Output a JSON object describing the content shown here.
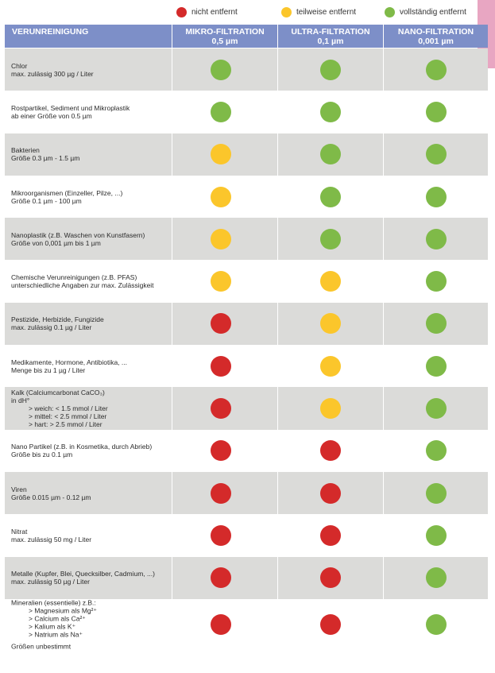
{
  "legend": [
    {
      "label": "nicht entfernt",
      "color": "#d42a2a"
    },
    {
      "label": "teilweise entfernt",
      "color": "#fbc62b"
    },
    {
      "label": "vollständig entfernt",
      "color": "#7fba48"
    }
  ],
  "header": {
    "col0": "VERUNREINIGUNG",
    "col1_title": "MIKRO-FILTRATION",
    "col1_size": "0,5 µm",
    "col2_title": "ULTRA-FILTRATION",
    "col2_size": "0,1 µm",
    "col3_title": "NANO-FILTRATION",
    "col3_size": "0,001 µm"
  },
  "status_colors": {
    "none": "#d42a2a",
    "partial": "#fbc62b",
    "full": "#7fba48"
  },
  "rows": [
    {
      "lines": [
        "Chlor",
        "max. zulässig 300 µg / Liter"
      ],
      "status": [
        "full",
        "full",
        "full"
      ]
    },
    {
      "lines": [
        "Rostpartikel, Sediment und Mikroplastik",
        "ab einer Größe von 0.5 µm"
      ],
      "status": [
        "full",
        "full",
        "full"
      ]
    },
    {
      "lines": [
        "Bakterien",
        "Größe 0.3 µm - 1.5 µm"
      ],
      "status": [
        "partial",
        "full",
        "full"
      ]
    },
    {
      "lines": [
        "Mikroorganismen (Einzeller, Pilze, ...)",
        "Größe 0.1 µm - 100 µm"
      ],
      "status": [
        "partial",
        "full",
        "full"
      ]
    },
    {
      "lines": [
        "Nanoplastik (z.B. Waschen von Kunstfasern)",
        "Größe von 0,001 µm bis 1 µm"
      ],
      "status": [
        "partial",
        "full",
        "full"
      ]
    },
    {
      "lines": [
        "Chemische Verunreinigungen (z.B. PFAS)",
        "unterschiedliche Angaben zur max. Zulässigkeit"
      ],
      "status": [
        "partial",
        "partial",
        "full"
      ]
    },
    {
      "lines": [
        "Pestizide, Herbizide, Fungizide",
        "max. zulässig 0.1 µg / Liter"
      ],
      "status": [
        "none",
        "partial",
        "full"
      ]
    },
    {
      "lines": [
        "Medikamente, Hormone, Antibiotika, ...",
        "Menge bis zu 1 µg / Liter"
      ],
      "status": [
        "none",
        "partial",
        "full"
      ]
    },
    {
      "lines": [
        "Kalk (Calciumcarbonat CaCO₃)",
        "in dH°"
      ],
      "sublines": [
        "> weich: < 1.5 mmol / Liter",
        "> mittel: < 2.5 mmol / Liter",
        "> hart: > 2.5 mmol / Liter"
      ],
      "status": [
        "none",
        "partial",
        "full"
      ]
    },
    {
      "lines": [
        "Nano Partikel (z.B. in Kosmetika, durch Abrieb)",
        "Größe bis zu 0.1 µm"
      ],
      "status": [
        "none",
        "none",
        "full"
      ]
    },
    {
      "lines": [
        "Viren",
        "Größe 0.015 µm - 0.12 µm"
      ],
      "status": [
        "none",
        "none",
        "full"
      ]
    },
    {
      "lines": [
        "Nitrat",
        "max. zulässig 50 mg / Liter"
      ],
      "status": [
        "none",
        "none",
        "full"
      ]
    },
    {
      "lines": [
        "Metalle (Kupfer, Blei, Quecksilber, Cadmium, ...)",
        "max. zulässig 50 µg / Liter"
      ],
      "status": [
        "none",
        "none",
        "full"
      ]
    },
    {
      "lines": [
        "Mineralien (essentielle) z.B.:"
      ],
      "sublines": [
        "> Magnesium als Mg²⁺",
        "> Calcium als Ca²⁺",
        "> Kalium als K⁺",
        "> Natrium als Na⁺"
      ],
      "footer": "Größen unbestimmt",
      "status": [
        "none",
        "none",
        "full"
      ]
    }
  ]
}
